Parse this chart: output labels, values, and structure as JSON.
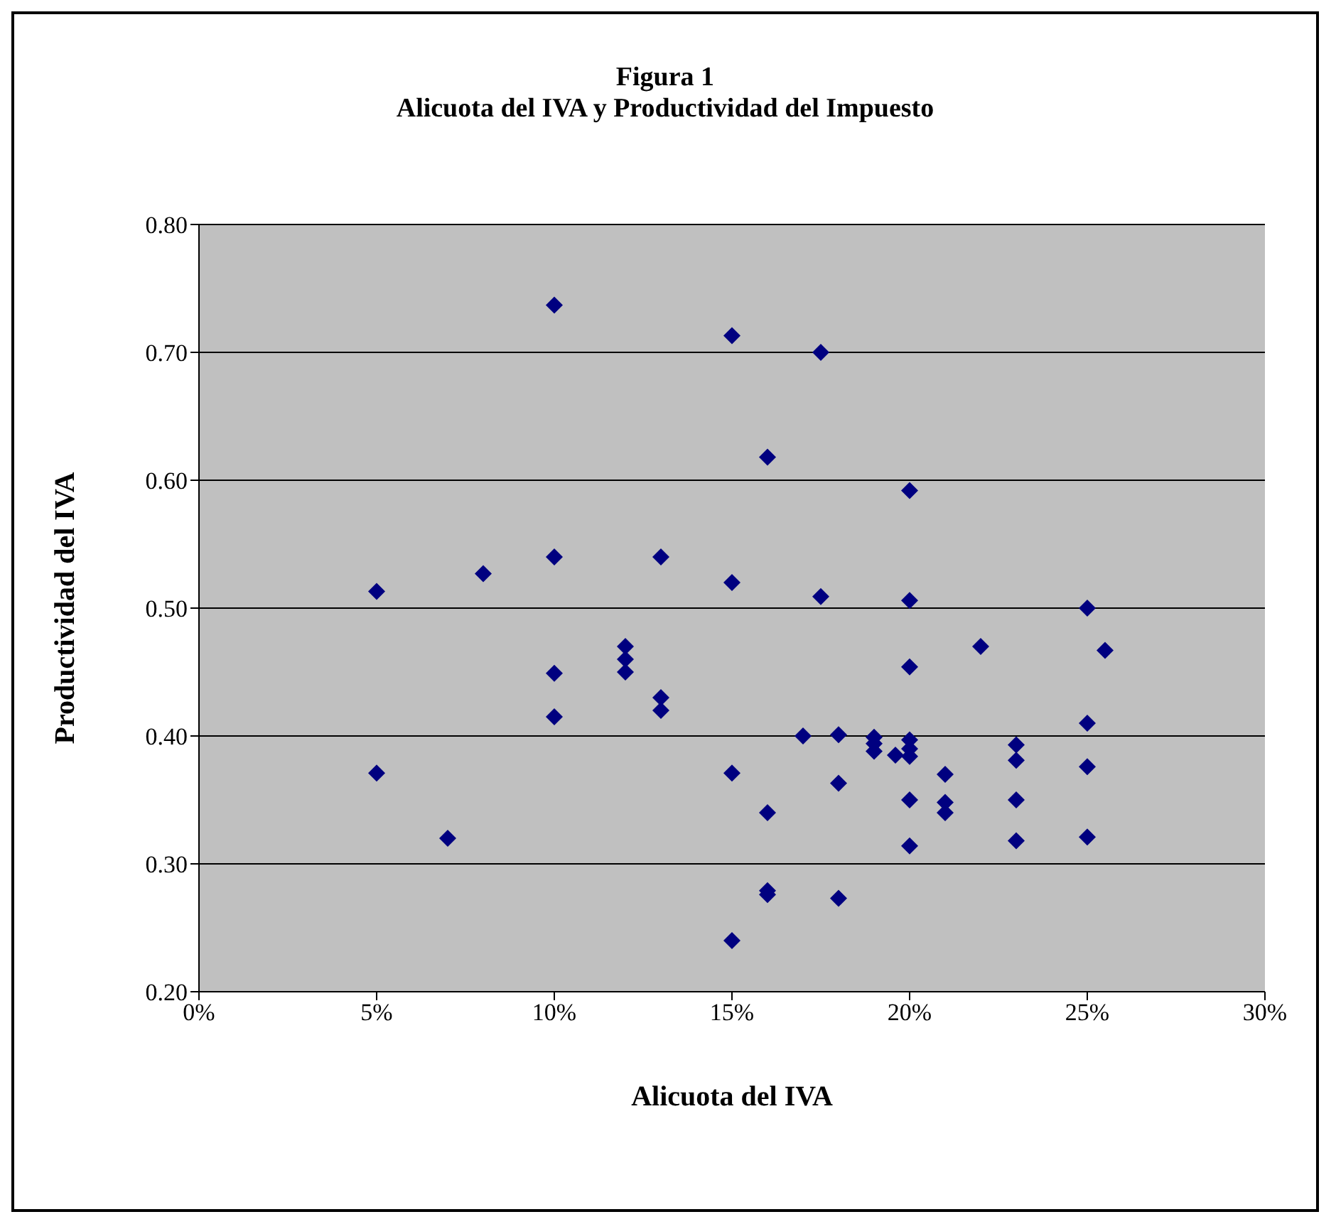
{
  "chart_data": {
    "type": "scatter",
    "title": "Figura 1",
    "subtitle": "Alicuota del IVA y Productividad del Impuesto",
    "xlabel": "Alicuota del IVA",
    "ylabel": "Productividad del IVA",
    "x": [
      0.05,
      0.05,
      0.07,
      0.08,
      0.1,
      0.1,
      0.1,
      0.1,
      0.12,
      0.12,
      0.12,
      0.13,
      0.13,
      0.13,
      0.15,
      0.15,
      0.15,
      0.15,
      0.16,
      0.16,
      0.16,
      0.16,
      0.17,
      0.175,
      0.175,
      0.18,
      0.18,
      0.18,
      0.19,
      0.19,
      0.19,
      0.196,
      0.2,
      0.2,
      0.2,
      0.2,
      0.2,
      0.2,
      0.2,
      0.2,
      0.21,
      0.21,
      0.21,
      0.22,
      0.23,
      0.23,
      0.23,
      0.23,
      0.25,
      0.25,
      0.25,
      0.25,
      0.255
    ],
    "series": [
      {
        "color": "#000080",
        "values": [
          0.513,
          0.371,
          0.32,
          0.527,
          0.737,
          0.54,
          0.449,
          0.415,
          0.47,
          0.46,
          0.45,
          0.54,
          0.43,
          0.42,
          0.713,
          0.52,
          0.371,
          0.24,
          0.618,
          0.34,
          0.279,
          0.276,
          0.4,
          0.7,
          0.509,
          0.401,
          0.363,
          0.273,
          0.399,
          0.394,
          0.388,
          0.385,
          0.592,
          0.506,
          0.454,
          0.397,
          0.39,
          0.384,
          0.35,
          0.314,
          0.37,
          0.348,
          0.34,
          0.47,
          0.393,
          0.381,
          0.35,
          0.318,
          0.5,
          0.41,
          0.376,
          0.321,
          0.467
        ]
      }
    ],
    "xlim": [
      0,
      0.3
    ],
    "xticks": [
      {
        "value": 0,
        "label": "0%"
      },
      {
        "value": 0.05,
        "label": "5%"
      },
      {
        "value": 0.1,
        "label": "10%"
      },
      {
        "value": 0.15,
        "label": "15%"
      },
      {
        "value": 0.2,
        "label": "20%"
      },
      {
        "value": 0.25,
        "label": "25%"
      },
      {
        "value": 0.3,
        "label": "30%"
      }
    ],
    "ylim": [
      0.2,
      0.8
    ],
    "yticks": [
      {
        "value": 0.2,
        "label": "0.20"
      },
      {
        "value": 0.3,
        "label": "0.30"
      },
      {
        "value": 0.4,
        "label": "0.40"
      },
      {
        "value": 0.5,
        "label": "0.50"
      },
      {
        "value": 0.6,
        "label": "0.60"
      },
      {
        "value": 0.7,
        "label": "0.70"
      },
      {
        "value": 0.8,
        "label": "0.80"
      }
    ],
    "grid": "y",
    "marker": "diamond"
  }
}
